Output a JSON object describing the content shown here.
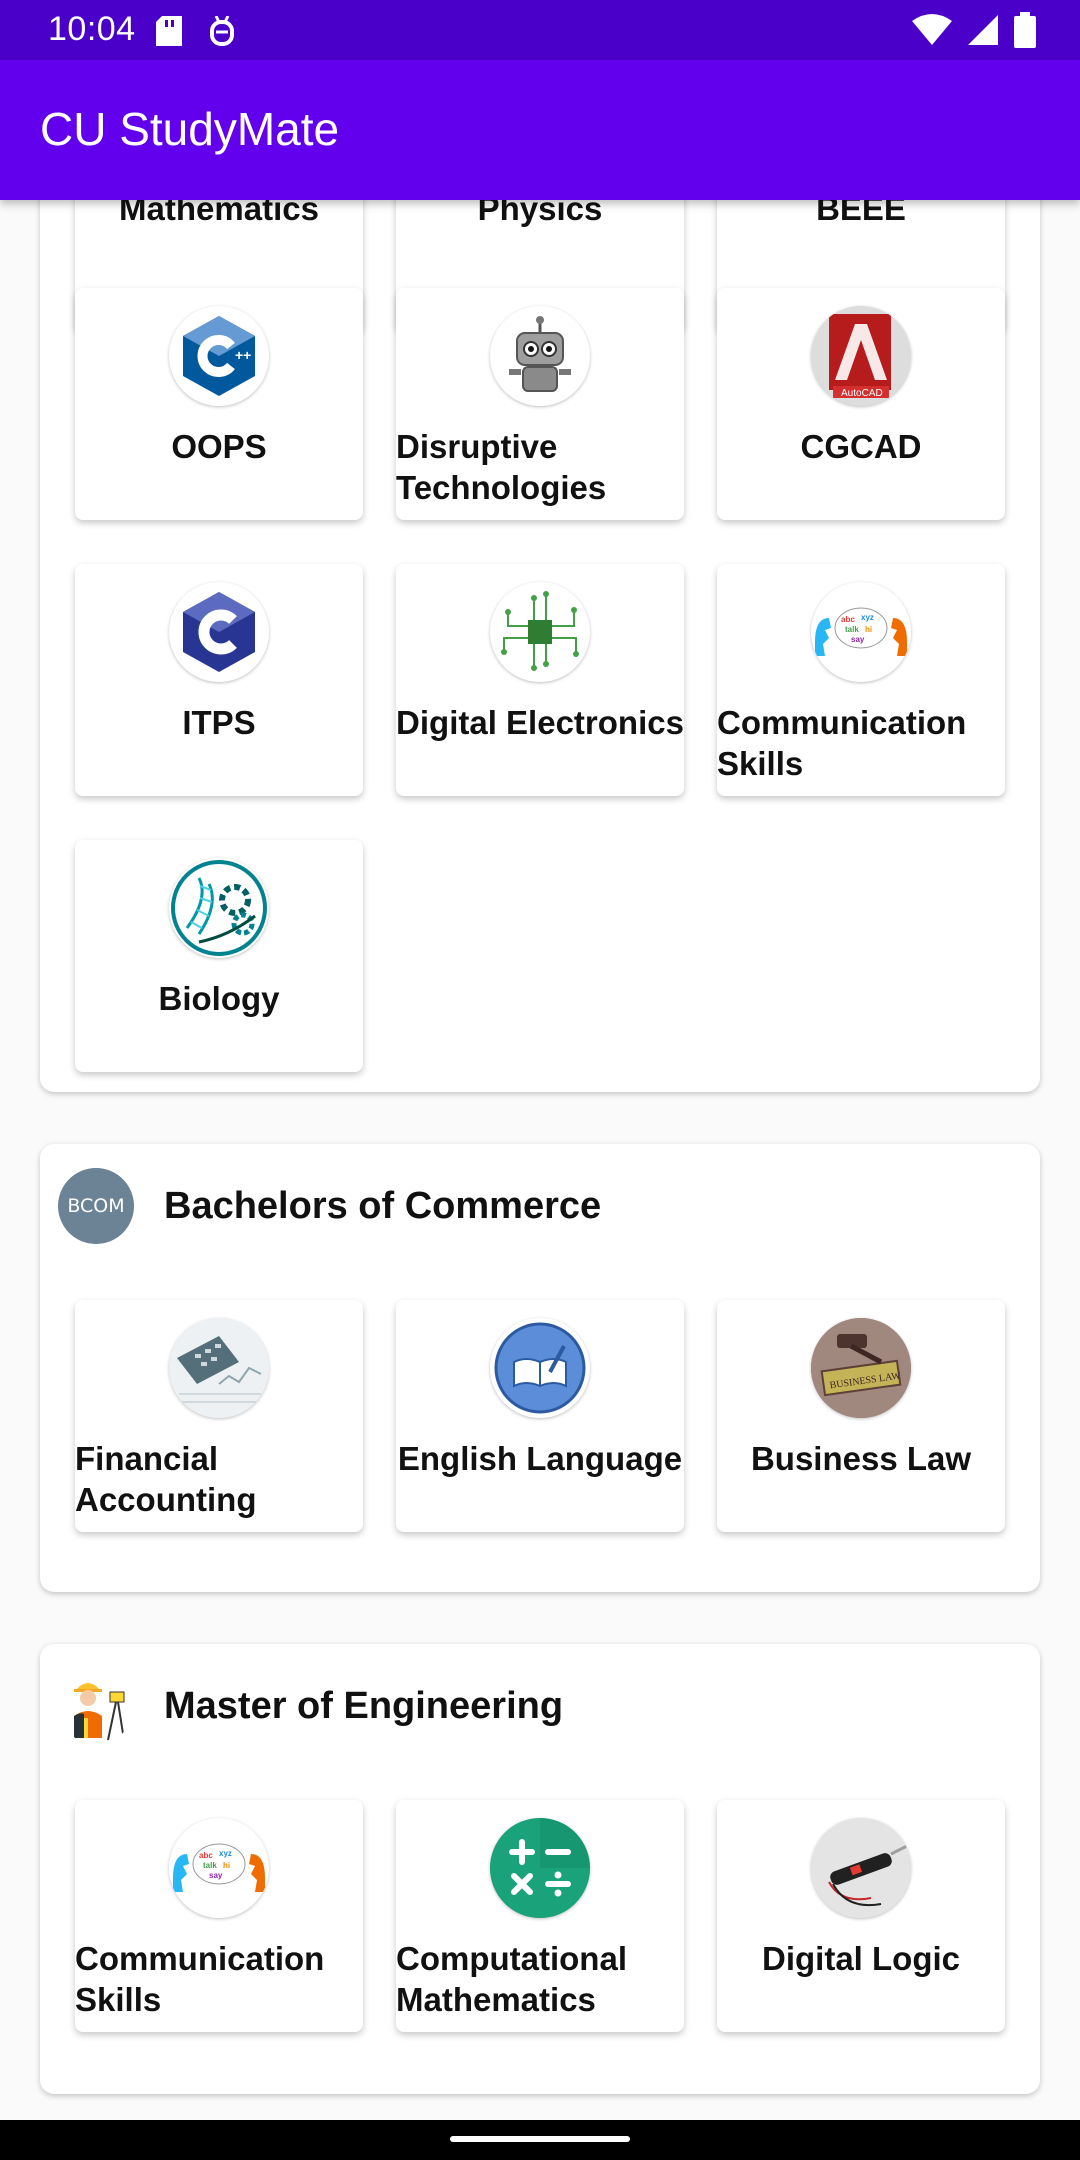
{
  "status_bar": {
    "time": "10:04",
    "left_icons": [
      "sd-card-icon",
      "debug-bug-icon"
    ],
    "right_icons": [
      "wifi-icon",
      "cell-signal-icon",
      "battery-icon"
    ]
  },
  "app_bar": {
    "title": "CU StudyMate"
  },
  "colors": {
    "status_bar": "#4a00c8",
    "app_bar": "#6200ee"
  },
  "sections": [
    {
      "title": "",
      "subjects": [
        {
          "label": "Mathematics"
        },
        {
          "label": "Physics"
        },
        {
          "label": "BEEE"
        },
        {
          "label": "OOPS",
          "icon": "cpp-logo-icon"
        },
        {
          "label": "Disruptive Technologies",
          "icon": "robot-icon"
        },
        {
          "label": "CGCAD",
          "icon": "autocad-icon"
        },
        {
          "label": "ITPS",
          "icon": "c-logo-icon"
        },
        {
          "label": "Digital Electronics",
          "icon": "circuit-board-icon"
        },
        {
          "label": "Communication Skills",
          "icon": "communication-heads-icon"
        },
        {
          "label": "Biology",
          "icon": "dna-gears-icon"
        }
      ]
    },
    {
      "title": "Bachelors of Commerce",
      "avatar_text": "BCOM",
      "subjects": [
        {
          "label": "Financial Accounting",
          "icon": "accounting-calculator-icon"
        },
        {
          "label": "English Language",
          "icon": "book-pen-icon"
        },
        {
          "label": "Business Law",
          "icon": "gavel-law-icon"
        }
      ]
    },
    {
      "title": "Master of Engineering",
      "avatar_icon": "engineer-surveyor-icon",
      "subjects": [
        {
          "label": "Communication Skills",
          "icon": "communication-heads-icon"
        },
        {
          "label": "Computational Mathematics",
          "icon": "math-operators-icon"
        },
        {
          "label": "Digital Logic",
          "icon": "logic-probe-icon"
        }
      ]
    }
  ]
}
